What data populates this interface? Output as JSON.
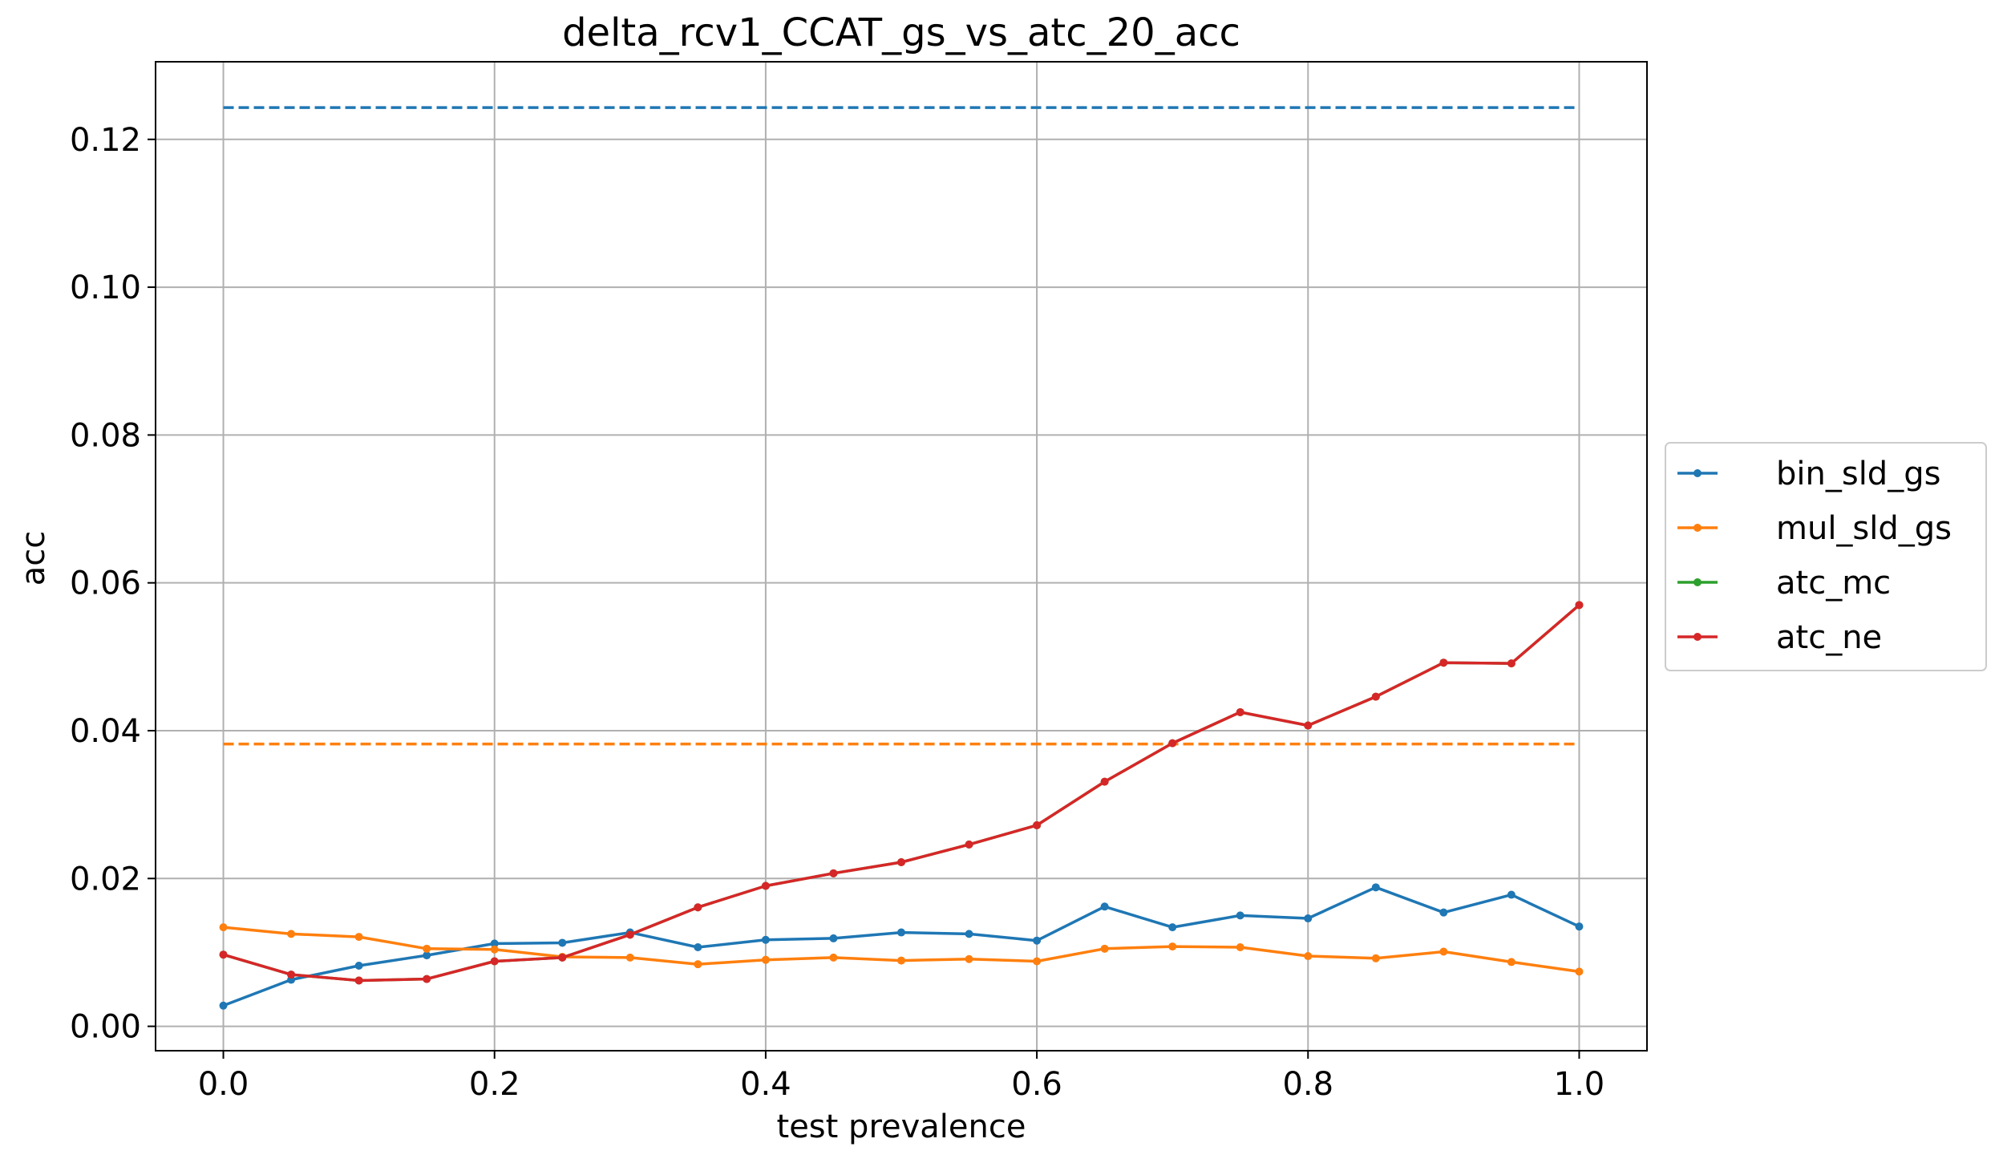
{
  "chart_data": {
    "type": "line",
    "title": "delta_rcv1_CCAT_gs_vs_atc_20_acc",
    "xlabel": "test prevalence",
    "ylabel": "acc",
    "xlim": [
      -0.05,
      1.05
    ],
    "ylim": [
      -0.0033,
      0.1305
    ],
    "xticks": [
      0.0,
      0.2,
      0.4,
      0.6,
      0.8,
      1.0
    ],
    "xtick_labels": [
      "0.0",
      "0.2",
      "0.4",
      "0.6",
      "0.8",
      "1.0"
    ],
    "yticks": [
      0.0,
      0.02,
      0.04,
      0.06,
      0.08,
      0.1,
      0.12
    ],
    "ytick_labels": [
      "0.00",
      "0.02",
      "0.04",
      "0.06",
      "0.08",
      "0.10",
      "0.12"
    ],
    "grid": true,
    "legend_placement": "outside-right",
    "x": [
      0.0,
      0.05,
      0.1,
      0.15,
      0.2,
      0.25,
      0.3,
      0.35,
      0.4,
      0.45,
      0.5,
      0.55,
      0.6,
      0.65,
      0.7,
      0.75,
      0.8,
      0.85,
      0.9,
      0.95,
      1.0
    ],
    "series": [
      {
        "name": "bin_sld_gs",
        "color": "#1f77b4",
        "values": [
          0.0028,
          0.0063,
          0.0082,
          0.0096,
          0.0112,
          0.0113,
          0.0127,
          0.0107,
          0.0117,
          0.0119,
          0.0127,
          0.0125,
          0.0116,
          0.0162,
          0.0134,
          0.015,
          0.0146,
          0.0188,
          0.0154,
          0.0178,
          0.0135
        ],
        "reference": 0.1243
      },
      {
        "name": "mul_sld_gs",
        "color": "#ff7f0e",
        "values": [
          0.0134,
          0.0125,
          0.0121,
          0.0105,
          0.0104,
          0.0094,
          0.0093,
          0.0084,
          0.009,
          0.0093,
          0.0089,
          0.0091,
          0.0088,
          0.0105,
          0.0108,
          0.0107,
          0.0095,
          0.0092,
          0.0101,
          0.0087,
          0.0074
        ],
        "reference": 0.0382
      },
      {
        "name": "atc_mc",
        "color": "#2ca02c",
        "values": [
          0.0097,
          0.007,
          0.0062,
          0.0064,
          0.0088,
          0.0093,
          0.0124,
          0.0161,
          0.019,
          0.0207,
          0.0222,
          0.0246,
          0.0272,
          0.0331,
          0.0383,
          0.0425,
          0.0407,
          0.0446,
          0.0492,
          0.0491,
          0.057
        ]
      },
      {
        "name": "atc_ne",
        "color": "#d62728",
        "values": [
          0.0097,
          0.007,
          0.0062,
          0.0064,
          0.0088,
          0.0093,
          0.0124,
          0.0161,
          0.019,
          0.0207,
          0.0222,
          0.0246,
          0.0272,
          0.0331,
          0.0383,
          0.0425,
          0.0407,
          0.0446,
          0.0492,
          0.0491,
          0.057
        ]
      }
    ]
  }
}
